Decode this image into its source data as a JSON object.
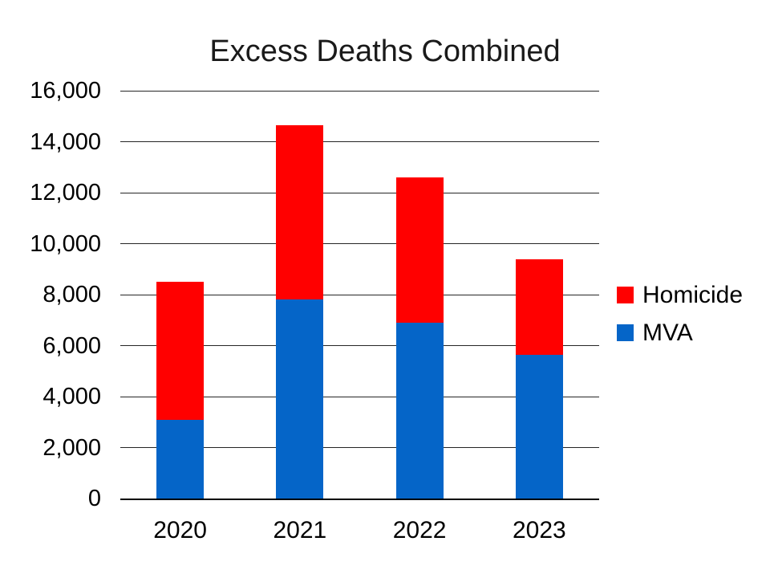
{
  "title": "Excess Deaths Combined",
  "colors": {
    "homicide": "#FF0000",
    "mva": "#0565C8",
    "gridline": "#262626",
    "axis": "#000000",
    "text": "#000000",
    "background": "#FFFFFF"
  },
  "legend": [
    {
      "label": "Homicide",
      "color": "#FF0000"
    },
    {
      "label": "MVA",
      "color": "#0565C8"
    }
  ],
  "chart_data": {
    "type": "bar",
    "stacked": true,
    "title": "Excess Deaths Combined",
    "categories": [
      "2020",
      "2021",
      "2022",
      "2023"
    ],
    "series": [
      {
        "name": "MVA",
        "color": "#0565C8",
        "values": [
          3100,
          7800,
          6900,
          5650
        ]
      },
      {
        "name": "Homicide",
        "color": "#FF0000",
        "values": [
          5400,
          6850,
          5700,
          3750
        ]
      }
    ],
    "totals": [
      8500,
      14650,
      12600,
      9400
    ],
    "xlabel": "",
    "ylabel": "",
    "ylim": [
      0,
      16000
    ],
    "ytick_step": 2000,
    "ytick_labels": [
      "0",
      "2,000",
      "4,000",
      "6,000",
      "8,000",
      "10,000",
      "12,000",
      "14,000",
      "16,000"
    ],
    "grid": true,
    "legend_position": "right"
  }
}
